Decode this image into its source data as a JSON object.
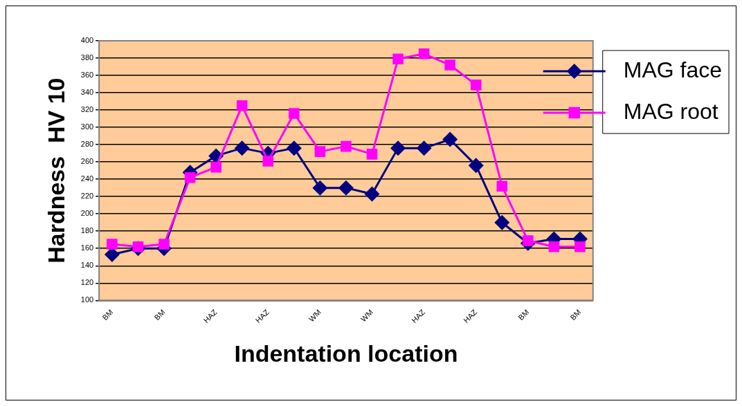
{
  "chart_data": {
    "type": "line",
    "xlabel": "Indentation location",
    "ylabel": "Hardness  HV 10",
    "categories": [
      "BM",
      null,
      "BM",
      null,
      "HAZ",
      null,
      "HAZ",
      null,
      "WM",
      null,
      "WM",
      null,
      "HAZ",
      null,
      "HAZ",
      null,
      "BM",
      null,
      "BM"
    ],
    "series": [
      {
        "name": "MAG face",
        "color": "#000080",
        "marker": "diamond",
        "values": [
          153,
          160,
          160,
          248,
          267,
          276,
          270,
          276,
          230,
          230,
          223,
          276,
          276,
          286,
          256,
          190,
          166,
          171,
          171
        ]
      },
      {
        "name": "MAG root",
        "color": "#ff00ff",
        "marker": "square",
        "values": [
          165,
          162,
          165,
          242,
          254,
          325,
          261,
          316,
          272,
          278,
          269,
          379,
          385,
          372,
          349,
          232,
          169,
          162,
          162
        ]
      }
    ],
    "ylim": [
      100,
      400
    ],
    "yticks": [
      100,
      120,
      140,
      160,
      180,
      200,
      220,
      240,
      260,
      280,
      300,
      320,
      340,
      360,
      380,
      400
    ],
    "grid": "y",
    "legend": "right"
  }
}
